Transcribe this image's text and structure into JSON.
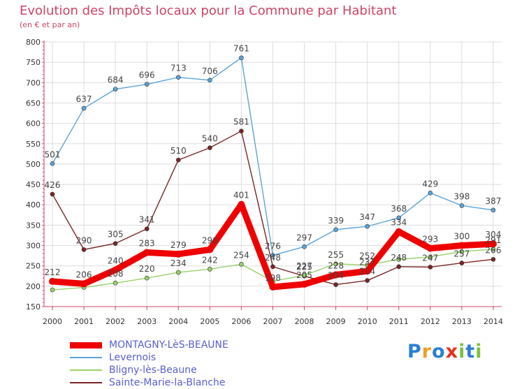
{
  "header": {
    "title": "Evolution des Impôts locaux pour la Commune par Habitant",
    "subtitle": "(en € et par an)"
  },
  "logo": {
    "text": "Proxiti",
    "letters": [
      "P",
      "r",
      "o",
      "x",
      "i",
      "t",
      "i"
    ],
    "colors": [
      "#2a7fd4",
      "#f0a020",
      "#2a7fd4",
      "#e83020",
      "#7cc040",
      "#2a7fd4",
      "#7cc040"
    ]
  },
  "colors": {
    "axis": "#cc4466",
    "grid": "#dddddd",
    "tick_label": "#333333",
    "value_label": "#444444",
    "legend_text": "#5a5fd0"
  },
  "chart_data": {
    "type": "line",
    "x": [
      "2000",
      "2001",
      "2002",
      "2003",
      "2004",
      "2005",
      "2006",
      "2007",
      "2008",
      "2009",
      "2010",
      "2011",
      "2012",
      "2013",
      "2014"
    ],
    "ylim": [
      150,
      800
    ],
    "yticks": [
      150,
      200,
      250,
      300,
      350,
      400,
      450,
      500,
      550,
      600,
      650,
      700,
      750,
      800
    ],
    "grid": true,
    "legend_position": "bottom-left",
    "series": [
      {
        "name": "Levernois",
        "color": "#5ba3d9",
        "values": [
          501,
          637,
          684,
          696,
          713,
          706,
          761,
          276,
          297,
          339,
          347,
          368,
          429,
          398,
          387
        ],
        "labels": [
          "501",
          "637",
          "684",
          "696",
          "713",
          "706",
          "761",
          "276",
          "297",
          "339",
          "347",
          "368",
          "429",
          "398",
          "387"
        ]
      },
      {
        "name": "Sainte-Marie-la-Blanche",
        "color": "#7a2424",
        "values": [
          426,
          290,
          305,
          341,
          510,
          540,
          581,
          248,
          225,
          204,
          214,
          248,
          247,
          257,
          266
        ],
        "labels": [
          "426",
          "290",
          "305",
          "341",
          "510",
          "540",
          "581",
          "248",
          "225",
          "204",
          "214",
          "248",
          "247",
          "257",
          "266"
        ]
      },
      {
        "name": "Bligny-lès-Beaune",
        "color": "#99d16a",
        "values": [
          191,
          197,
          208,
          220,
          234,
          242,
          254,
          212,
          227,
          255,
          252,
          266,
          272,
          285,
          291
        ],
        "labels": [
          "",
          "",
          "208",
          "220",
          "234",
          "242",
          "254",
          "",
          "227",
          "255",
          "252",
          "",
          "",
          "",
          "291"
        ]
      },
      {
        "name": "MONTAGNY-LèS-BEAUNE",
        "color": "#ee0000",
        "values": [
          212,
          206,
          240,
          283,
          279,
          290,
          401,
          198,
          205,
          228,
          237,
          334,
          293,
          300,
          304
        ],
        "labels": [
          "212",
          "206",
          "240",
          "283",
          "279",
          "290",
          "401",
          "198",
          "205",
          "228",
          "237",
          "334",
          "293",
          "300",
          "304"
        ]
      }
    ]
  },
  "legend": {
    "items": [
      {
        "label": "MONTAGNY-LèS-BEAUNE",
        "color": "#ee0000",
        "width": 9
      },
      {
        "label": "Levernois",
        "color": "#5ba3d9",
        "width": 2
      },
      {
        "label": "Bligny-lès-Beaune",
        "color": "#99d16a",
        "width": 2
      },
      {
        "label": "Sainte-Marie-la-Blanche",
        "color": "#7a2424",
        "width": 2
      }
    ]
  }
}
